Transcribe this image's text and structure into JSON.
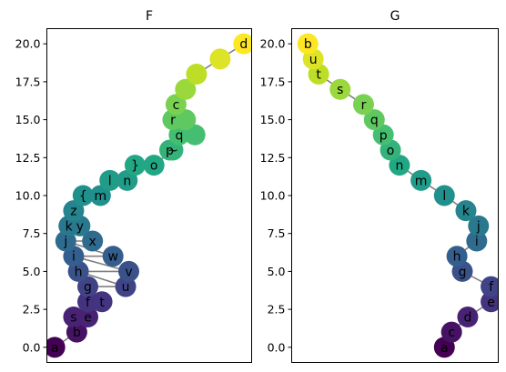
{
  "chart_data": [
    {
      "type": "scatter",
      "title": "F",
      "xlabel": "",
      "ylabel": "",
      "ylim": [
        -1,
        21
      ],
      "yticks": [
        0.0,
        2.5,
        5.0,
        7.5,
        10.0,
        12.5,
        15.0,
        17.5,
        20.0
      ],
      "ytick_labels": [
        "0.0",
        "2.5",
        "5.0",
        "7.5",
        "10.0",
        "12.5",
        "15.0",
        "17.5",
        "20.0"
      ],
      "xticks_visible": false,
      "colormap": "viridis",
      "line_color": "#808080",
      "points": [
        {
          "label": "a",
          "x": 0.0,
          "y": 0.0
        },
        {
          "label": "b",
          "x": 1.4,
          "y": 1.0
        },
        {
          "label": "s",
          "x": 1.2,
          "y": 2.0
        },
        {
          "label": "e",
          "x": 2.1,
          "y": 2.0
        },
        {
          "label": "f",
          "x": 2.1,
          "y": 3.0
        },
        {
          "label": "t",
          "x": 3.0,
          "y": 3.0
        },
        {
          "label": "g",
          "x": 2.1,
          "y": 4.0
        },
        {
          "label": "u",
          "x": 4.5,
          "y": 4.0
        },
        {
          "label": "h",
          "x": 1.5,
          "y": 5.0
        },
        {
          "label": "v",
          "x": 4.7,
          "y": 5.0
        },
        {
          "label": "i",
          "x": 1.2,
          "y": 6.0
        },
        {
          "label": "w",
          "x": 3.7,
          "y": 6.0
        },
        {
          "label": "j",
          "x": 0.7,
          "y": 7.0
        },
        {
          "label": "x",
          "x": 2.4,
          "y": 7.0
        },
        {
          "label": "k",
          "x": 0.9,
          "y": 8.0
        },
        {
          "label": "y",
          "x": 1.6,
          "y": 8.0
        },
        {
          "label": "z",
          "x": 1.2,
          "y": 9.0
        },
        {
          "label": "{",
          "x": 1.8,
          "y": 10.0
        },
        {
          "label": "m",
          "x": 2.9,
          "y": 10.0
        },
        {
          "label": "l",
          "x": 3.5,
          "y": 11.0
        },
        {
          "label": "n",
          "x": 4.6,
          "y": 11.0
        },
        {
          "label": "}",
          "x": 5.1,
          "y": 12.0
        },
        {
          "label": "o",
          "x": 6.3,
          "y": 12.0
        },
        {
          "label": "~",
          "x": 7.5,
          "y": 13.0
        },
        {
          "label": "p",
          "x": 7.3,
          "y": 13.0
        },
        {
          "label": "q",
          "x": 7.9,
          "y": 14.0
        },
        {
          "label": "",
          "x": 8.9,
          "y": 14.0
        },
        {
          "label": "r",
          "x": 7.5,
          "y": 15.0
        },
        {
          "label": "",
          "x": 8.3,
          "y": 15.0
        },
        {
          "label": "c",
          "x": 7.7,
          "y": 16.0
        },
        {
          "label": "",
          "x": 8.3,
          "y": 17.0
        },
        {
          "label": "",
          "x": 9.0,
          "y": 18.0
        },
        {
          "label": "",
          "x": 10.5,
          "y": 19.0
        },
        {
          "label": "d",
          "x": 12.0,
          "y": 20.0
        }
      ]
    },
    {
      "type": "scatter",
      "title": "G",
      "xlabel": "",
      "ylabel": "",
      "ylim": [
        -1,
        21
      ],
      "yticks": [
        0.0,
        2.5,
        5.0,
        7.5,
        10.0,
        12.5,
        15.0,
        17.5,
        20.0
      ],
      "ytick_labels": [
        "0.0",
        "2.5",
        "5.0",
        "7.5",
        "10.0",
        "12.5",
        "15.0",
        "17.5",
        "20.0"
      ],
      "xticks_visible": false,
      "colormap": "viridis",
      "line_color": "#808080",
      "points": [
        {
          "label": "a",
          "x": 0.0,
          "y": 0.0
        },
        {
          "label": "c",
          "x": 0.4,
          "y": 1.0
        },
        {
          "label": "d",
          "x": 1.3,
          "y": 2.0
        },
        {
          "label": "e",
          "x": 2.6,
          "y": 3.0
        },
        {
          "label": "f",
          "x": 2.6,
          "y": 4.0
        },
        {
          "label": "g",
          "x": 1.0,
          "y": 5.0
        },
        {
          "label": "h",
          "x": 0.7,
          "y": 6.0
        },
        {
          "label": "i",
          "x": 1.8,
          "y": 7.0
        },
        {
          "label": "j",
          "x": 1.9,
          "y": 8.0
        },
        {
          "label": "k",
          "x": 1.2,
          "y": 9.0
        },
        {
          "label": "l",
          "x": 0.0,
          "y": 10.0
        },
        {
          "label": "m",
          "x": -1.3,
          "y": 11.0
        },
        {
          "label": "n",
          "x": -2.5,
          "y": 12.0
        },
        {
          "label": "o",
          "x": -3.0,
          "y": 13.0
        },
        {
          "label": "p",
          "x": -3.4,
          "y": 14.0
        },
        {
          "label": "q",
          "x": -3.9,
          "y": 15.0
        },
        {
          "label": "r",
          "x": -4.5,
          "y": 16.0
        },
        {
          "label": "s",
          "x": -5.8,
          "y": 17.0
        },
        {
          "label": "t",
          "x": -7.0,
          "y": 18.0
        },
        {
          "label": "u",
          "x": -7.3,
          "y": 19.0
        },
        {
          "label": "b",
          "x": -7.6,
          "y": 20.0
        }
      ]
    }
  ]
}
